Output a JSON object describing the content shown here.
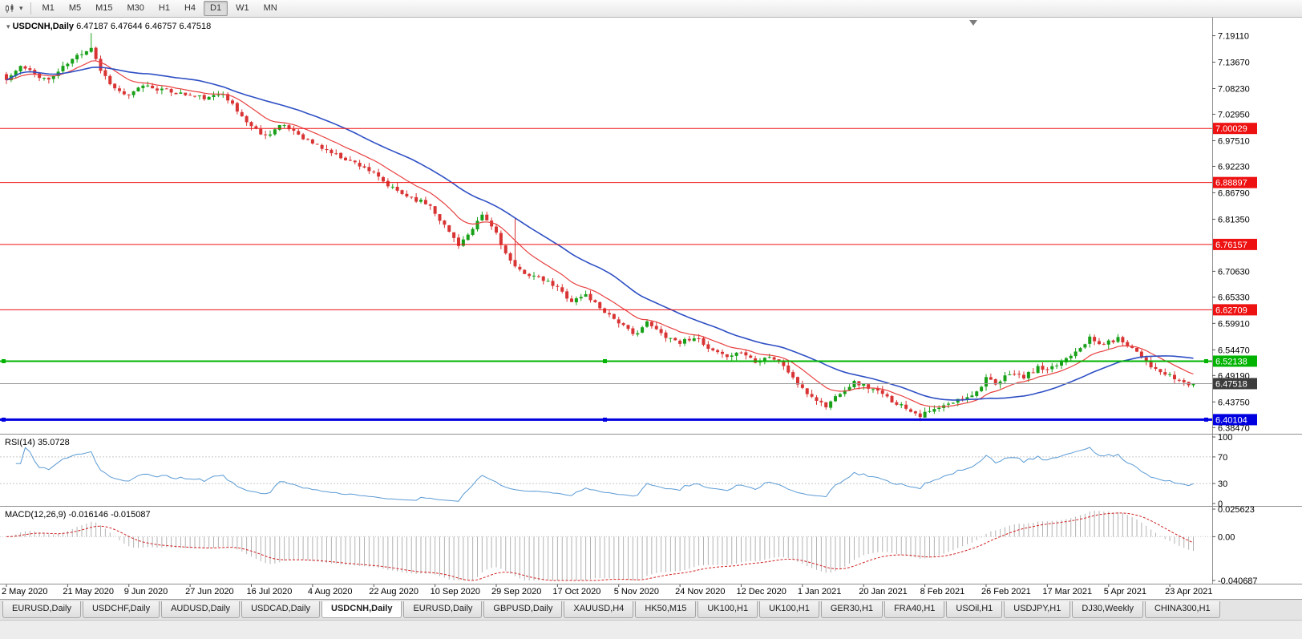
{
  "colors": {
    "up": "#18a018",
    "down": "#d93434",
    "ma_fast": "#e84040",
    "ma_slow": "#2e4fc4",
    "rsi_line": "#5b9bd5",
    "macd_hist": "#b2b2b2",
    "macd_signal": "#d02020",
    "hline_red": "#ee1111",
    "hline_green": "#00b300",
    "hline_blue": "#0000e0",
    "current_price_bg": "#3c3c3c",
    "axis_text": "#000000",
    "separator": "#909090"
  },
  "toolbar": {
    "timeframes": [
      "M1",
      "M5",
      "M15",
      "M30",
      "H1",
      "H4",
      "D1",
      "W1",
      "MN"
    ],
    "active_timeframe": "D1"
  },
  "chart": {
    "symbol_title": "USDCNH,Daily",
    "ohlc": "6.47187 6.47644 6.46757 6.47518",
    "price_axis_labels": [
      "7.19110",
      "7.13670",
      "7.08230",
      "7.02950",
      "6.97510",
      "6.92230",
      "6.86790",
      "6.81350",
      "6.70630",
      "6.65330",
      "6.59910",
      "6.54470",
      "6.49190",
      "6.43750",
      "6.38470"
    ],
    "hlines": [
      {
        "value": 7.00029,
        "label": "7.00029",
        "color": "#ee1111",
        "width": 1,
        "handles": false
      },
      {
        "value": 6.88897,
        "label": "6.88897",
        "color": "#ee1111",
        "width": 1,
        "handles": false
      },
      {
        "value": 6.76157,
        "label": "6.76157",
        "color": "#ee1111",
        "width": 1,
        "handles": false
      },
      {
        "value": 6.62709,
        "label": "6.62709",
        "color": "#ee1111",
        "width": 1,
        "handles": false
      },
      {
        "value": 6.52138,
        "label": "6.52138",
        "color": "#00b300",
        "width": 2,
        "handles": true
      },
      {
        "value": 6.40104,
        "label": "6.40104",
        "color": "#0000e0",
        "width": 3,
        "handles": true
      }
    ],
    "current_price": {
      "value": 6.47518,
      "label": "6.47518"
    },
    "date_labels": [
      "2 May 2020",
      "21 May 2020",
      "9 Jun 2020",
      "27 Jun 2020",
      "16 Jul 2020",
      "4 Aug 2020",
      "22 Aug 2020",
      "10 Sep 2020",
      "29 Sep 2020",
      "17 Oct 2020",
      "5 Nov 2020",
      "24 Nov 2020",
      "12 Dec 2020",
      "1 Jan 2021",
      "20 Jan 2021",
      "8 Feb 2021",
      "26 Feb 2021",
      "17 Mar 2021",
      "5 Apr 2021",
      "23 Apr 2021"
    ]
  },
  "rsi": {
    "label": "RSI(14) 35.0728",
    "value_display": "35.0728",
    "period": 14,
    "axis_labels": [
      "100",
      "70",
      "30",
      "0"
    ],
    "level_lines": [
      70,
      30
    ],
    "range": [
      0,
      100
    ]
  },
  "macd": {
    "label": "MACD(12,26,9) -0.016146 -0.015087",
    "values_display": [
      "-0.016146",
      "-0.015087"
    ],
    "params": [
      12,
      26,
      9
    ],
    "axis_labels": [
      "0.025623",
      "0.00",
      "-0.040687"
    ],
    "range": [
      -0.040687,
      0.025623
    ]
  },
  "window": {
    "tabs": [
      "EURUSD,Daily",
      "USDCHF,Daily",
      "AUDUSD,Daily",
      "USDCAD,Daily",
      "USDCNH,Daily",
      "EURUSD,Daily",
      "GBPUSD,Daily",
      "XAUUSD,H4",
      "HK50,M15",
      "UK100,H1",
      "UK100,H1",
      "GER30,H1",
      "FRA40,H1",
      "USOil,H1",
      "USDJPY,H1",
      "DJ30,Weekly",
      "CHINA300,H1"
    ],
    "active_tab_index": 4
  },
  "chart_data": {
    "type": "candlestick",
    "symbol": "USDCNH",
    "timeframe": "Daily",
    "x_start_label": "2 May 2020",
    "x_end_label": "23 Apr 2021",
    "num_candles": 253,
    "candles_per_label": 13,
    "price_range": [
      6.372,
      7.225
    ],
    "close_anchors": [
      [
        0,
        7.1
      ],
      [
        3,
        7.128
      ],
      [
        6,
        7.112
      ],
      [
        9,
        7.1
      ],
      [
        12,
        7.126
      ],
      [
        15,
        7.15
      ],
      [
        18,
        7.168
      ],
      [
        20,
        7.12
      ],
      [
        23,
        7.082
      ],
      [
        26,
        7.066
      ],
      [
        29,
        7.09
      ],
      [
        33,
        7.08
      ],
      [
        36,
        7.074
      ],
      [
        39,
        7.068
      ],
      [
        43,
        7.062
      ],
      [
        46,
        7.075
      ],
      [
        49,
        7.035
      ],
      [
        52,
        7.005
      ],
      [
        55,
        6.985
      ],
      [
        58,
        7.006
      ],
      [
        61,
        6.996
      ],
      [
        64,
        6.975
      ],
      [
        67,
        6.96
      ],
      [
        70,
        6.946
      ],
      [
        73,
        6.934
      ],
      [
        76,
        6.921
      ],
      [
        78,
        6.906
      ],
      [
        81,
        6.882
      ],
      [
        84,
        6.866
      ],
      [
        87,
        6.854
      ],
      [
        90,
        6.842
      ],
      [
        93,
        6.8
      ],
      [
        96,
        6.762
      ],
      [
        99,
        6.79
      ],
      [
        101,
        6.822
      ],
      [
        104,
        6.786
      ],
      [
        106,
        6.742
      ],
      [
        108,
        6.712
      ],
      [
        111,
        6.7
      ],
      [
        114,
        6.688
      ],
      [
        117,
        6.672
      ],
      [
        120,
        6.645
      ],
      [
        123,
        6.658
      ],
      [
        126,
        6.632
      ],
      [
        130,
        6.602
      ],
      [
        133,
        6.575
      ],
      [
        136,
        6.6
      ],
      [
        139,
        6.578
      ],
      [
        143,
        6.56
      ],
      [
        146,
        6.572
      ],
      [
        149,
        6.545
      ],
      [
        152,
        6.532
      ],
      [
        156,
        6.54
      ],
      [
        159,
        6.522
      ],
      [
        162,
        6.532
      ],
      [
        165,
        6.512
      ],
      [
        169,
        6.462
      ],
      [
        172,
        6.442
      ],
      [
        174,
        6.428
      ],
      [
        177,
        6.458
      ],
      [
        180,
        6.478
      ],
      [
        182,
        6.472
      ],
      [
        185,
        6.458
      ],
      [
        188,
        6.44
      ],
      [
        191,
        6.426
      ],
      [
        194,
        6.41
      ],
      [
        197,
        6.421
      ],
      [
        200,
        6.432
      ],
      [
        203,
        6.446
      ],
      [
        206,
        6.458
      ],
      [
        208,
        6.488
      ],
      [
        210,
        6.47
      ],
      [
        213,
        6.498
      ],
      [
        216,
        6.488
      ],
      [
        219,
        6.508
      ],
      [
        221,
        6.5
      ],
      [
        224,
        6.52
      ],
      [
        227,
        6.544
      ],
      [
        230,
        6.568
      ],
      [
        232,
        6.556
      ],
      [
        234,
        6.56
      ],
      [
        236,
        6.568
      ],
      [
        238,
        6.556
      ],
      [
        240,
        6.542
      ],
      [
        242,
        6.522
      ],
      [
        244,
        6.502
      ],
      [
        247,
        6.49
      ],
      [
        249,
        6.481
      ],
      [
        251,
        6.474
      ],
      [
        252,
        6.475
      ]
    ],
    "spikes": [
      {
        "i": 18,
        "high": 7.1965
      },
      {
        "i": 108,
        "high": 6.815
      },
      {
        "i": 194,
        "low": 6.398
      }
    ],
    "last_candle": {
      "open": 6.47187,
      "high": 6.47644,
      "low": 6.46757,
      "close": 6.47518
    },
    "ma_fast_period": 12,
    "ma_slow_period": 30,
    "noise_seed": 11
  }
}
